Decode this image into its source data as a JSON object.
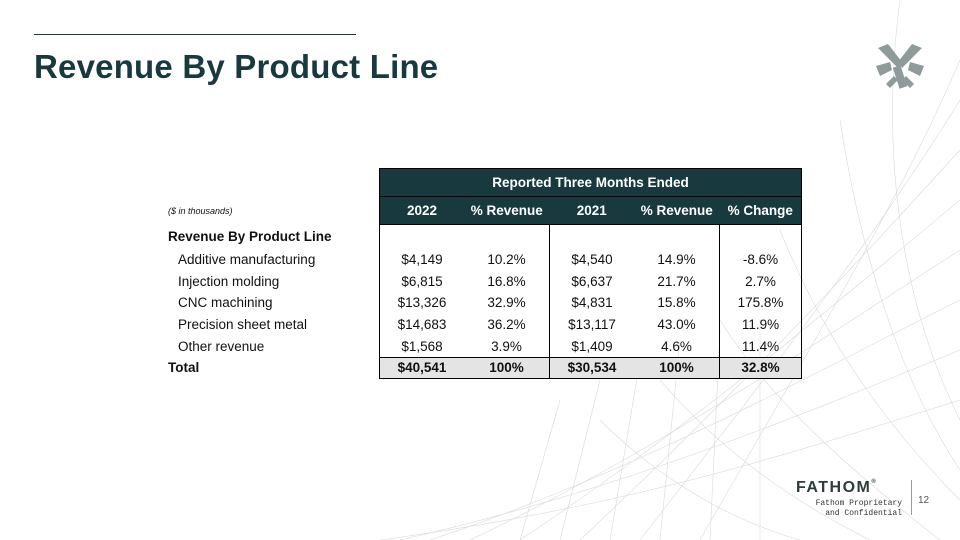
{
  "slide": {
    "title": "Revenue By Product Line",
    "page_number": "12"
  },
  "table": {
    "band_header": "Reported Three Months Ended",
    "units_note": "($ in thousands)",
    "columns": [
      "2022",
      "% Revenue",
      "2021",
      "% Revenue",
      "% Change"
    ],
    "section_label": "Revenue By Product Line",
    "rows": [
      {
        "label": "Additive manufacturing",
        "v2022": "$4,149",
        "pct2022": "10.2%",
        "v2021": "$4,540",
        "pct2021": "14.9%",
        "change": "-8.6%"
      },
      {
        "label": "Injection molding",
        "v2022": "$6,815",
        "pct2022": "16.8%",
        "v2021": "$6,637",
        "pct2021": "21.7%",
        "change": "2.7%"
      },
      {
        "label": "CNC machining",
        "v2022": "$13,326",
        "pct2022": "32.9%",
        "v2021": "$4,831",
        "pct2021": "15.8%",
        "change": "175.8%"
      },
      {
        "label": "Precision sheet metal",
        "v2022": "$14,683",
        "pct2022": "36.2%",
        "v2021": "$13,117",
        "pct2021": "43.0%",
        "change": "11.9%"
      },
      {
        "label": "Other revenue",
        "v2022": "$1,568",
        "pct2022": "3.9%",
        "v2021": "$1,409",
        "pct2021": "4.6%",
        "change": "11.4%"
      }
    ],
    "total": {
      "label": "Total",
      "v2022": "$40,541",
      "pct2022": "100%",
      "v2021": "$30,534",
      "pct2021": "100%",
      "change": "32.8%"
    }
  },
  "footer": {
    "brand": "FATHOM",
    "trademark": "®",
    "confidential_line1": "Fathom Proprietary",
    "confidential_line2": "and Confidential"
  },
  "icons": {
    "logo": "fathom-hammer-logo-icon"
  },
  "colors": {
    "brand_dark_teal": "#183a3f",
    "total_row_shade": "#e4e4e4"
  }
}
